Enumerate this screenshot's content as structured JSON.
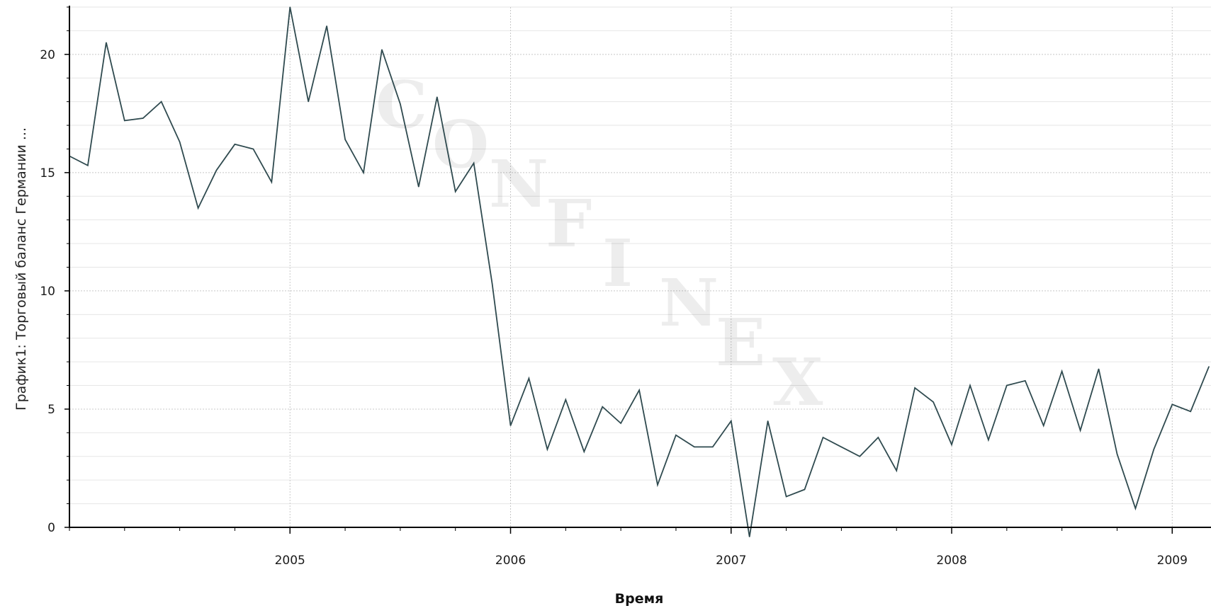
{
  "chart_data": {
    "type": "line",
    "title": "",
    "xlabel": "Время",
    "ylabel": "График1: Торговый баланс Германии ...",
    "ylim": [
      0,
      22
    ],
    "xlim": [
      "2004-01",
      "2009-03"
    ],
    "grid": true,
    "legend": "none",
    "y_ticks": [
      0,
      5,
      10,
      15,
      20
    ],
    "x_ticks": [
      {
        "label": "2005",
        "date": "2005-01"
      },
      {
        "label": "2006",
        "date": "2006-01"
      },
      {
        "label": "2007",
        "date": "2007-01"
      },
      {
        "label": "2008",
        "date": "2008-01"
      },
      {
        "label": "2009",
        "date": "2009-01"
      }
    ],
    "watermark": "CONFINEX",
    "series": [
      {
        "color": "#2f4a4f",
        "points": [
          {
            "x": "2004-01",
            "y": 15.7
          },
          {
            "x": "2004-02",
            "y": 15.3
          },
          {
            "x": "2004-03",
            "y": 20.5
          },
          {
            "x": "2004-04",
            "y": 17.2
          },
          {
            "x": "2004-05",
            "y": 17.3
          },
          {
            "x": "2004-06",
            "y": 18.0
          },
          {
            "x": "2004-07",
            "y": 16.3
          },
          {
            "x": "2004-08",
            "y": 13.5
          },
          {
            "x": "2004-09",
            "y": 15.1
          },
          {
            "x": "2004-10",
            "y": 16.2
          },
          {
            "x": "2004-11",
            "y": 16.0
          },
          {
            "x": "2004-12",
            "y": 14.6
          },
          {
            "x": "2005-01",
            "y": 22.0
          },
          {
            "x": "2005-02",
            "y": 18.0
          },
          {
            "x": "2005-03",
            "y": 21.2
          },
          {
            "x": "2005-04",
            "y": 16.4
          },
          {
            "x": "2005-05",
            "y": 15.0
          },
          {
            "x": "2005-06",
            "y": 20.2
          },
          {
            "x": "2005-07",
            "y": 17.9
          },
          {
            "x": "2005-08",
            "y": 14.4
          },
          {
            "x": "2005-09",
            "y": 18.2
          },
          {
            "x": "2005-10",
            "y": 14.2
          },
          {
            "x": "2005-11",
            "y": 15.4
          },
          {
            "x": "2005-12",
            "y": 10.3
          },
          {
            "x": "2006-01",
            "y": 4.3
          },
          {
            "x": "2006-02",
            "y": 6.3
          },
          {
            "x": "2006-03",
            "y": 3.3
          },
          {
            "x": "2006-04",
            "y": 5.4
          },
          {
            "x": "2006-05",
            "y": 3.2
          },
          {
            "x": "2006-06",
            "y": 5.1
          },
          {
            "x": "2006-07",
            "y": 4.4
          },
          {
            "x": "2006-08",
            "y": 5.8
          },
          {
            "x": "2006-09",
            "y": 1.8
          },
          {
            "x": "2006-10",
            "y": 3.9
          },
          {
            "x": "2006-11",
            "y": 3.4
          },
          {
            "x": "2006-12",
            "y": 3.4
          },
          {
            "x": "2007-01",
            "y": 4.5
          },
          {
            "x": "2007-02",
            "y": -0.4
          },
          {
            "x": "2007-03",
            "y": 4.5
          },
          {
            "x": "2007-04",
            "y": 1.3
          },
          {
            "x": "2007-05",
            "y": 1.6
          },
          {
            "x": "2007-06",
            "y": 3.8
          },
          {
            "x": "2007-07",
            "y": 3.4
          },
          {
            "x": "2007-08",
            "y": 3.0
          },
          {
            "x": "2007-09",
            "y": 3.8
          },
          {
            "x": "2007-10",
            "y": 2.4
          },
          {
            "x": "2007-11",
            "y": 5.9
          },
          {
            "x": "2007-12",
            "y": 5.3
          },
          {
            "x": "2008-01",
            "y": 3.5
          },
          {
            "x": "2008-02",
            "y": 6.0
          },
          {
            "x": "2008-03",
            "y": 3.7
          },
          {
            "x": "2008-04",
            "y": 6.0
          },
          {
            "x": "2008-05",
            "y": 6.2
          },
          {
            "x": "2008-06",
            "y": 4.3
          },
          {
            "x": "2008-07",
            "y": 6.6
          },
          {
            "x": "2008-08",
            "y": 4.1
          },
          {
            "x": "2008-09",
            "y": 6.7
          },
          {
            "x": "2008-10",
            "y": 3.1
          },
          {
            "x": "2008-11",
            "y": 0.8
          },
          {
            "x": "2008-12",
            "y": 3.3
          },
          {
            "x": "2009-01",
            "y": 5.2
          },
          {
            "x": "2009-02",
            "y": 4.9
          },
          {
            "x": "2009-03",
            "y": 6.8
          }
        ]
      }
    ]
  }
}
